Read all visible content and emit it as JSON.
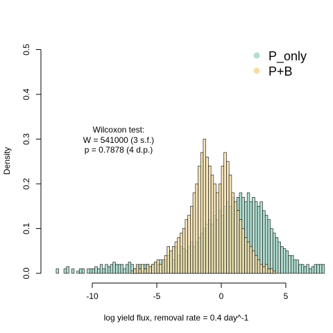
{
  "chart_data": {
    "type": "bar",
    "xlabel": "log yield flux, removal rate = 0.4 day^-1",
    "ylabel": "Density",
    "xlim": [
      -13,
      5.5
    ],
    "ylim": [
      0,
      0.5
    ],
    "x_ticks": [
      "-10",
      "-5",
      "0",
      "5"
    ],
    "y_ticks": [
      "0.0",
      "0.1",
      "0.2",
      "0.3",
      "0.4",
      "0.5"
    ],
    "grid": false,
    "legend_position": "top-right",
    "annotation": [
      "Wilcoxon test:",
      "W = 541000 (3 s.f.)",
      "p = 0.7878 (4 d.p.)"
    ],
    "bin_width": 0.2,
    "series": [
      {
        "name": "P_only",
        "color": "#b3ded2",
        "bin_start": -12.8,
        "values": [
          0.01,
          0,
          0,
          0.01,
          0.015,
          0,
          0.01,
          0,
          0.005,
          0.01,
          0.01,
          0,
          0.01,
          0.01,
          0.01,
          0.015,
          0.01,
          0.02,
          0.01,
          0.02,
          0.015,
          0.02,
          0.025,
          0.02,
          0.02,
          0.02,
          0.01,
          0.02,
          0.025,
          0.02,
          0.01,
          0.015,
          0.02,
          0.005,
          0.02,
          0.02,
          0.01,
          0.02,
          0.025,
          0.02,
          0.03,
          0.025,
          0.03,
          0.04,
          0.05,
          0.03,
          0.06,
          0.04,
          0.06,
          0.055,
          0.05,
          0.06,
          0.07,
          0.06,
          0.07,
          0.08,
          0.09,
          0.1,
          0.11,
          0.12,
          0.11,
          0.13,
          0.12,
          0.14,
          0.13,
          0.15,
          0.16,
          0.15,
          0.17,
          0.16,
          0.17,
          0.18,
          0.17,
          0.16,
          0.18,
          0.16,
          0.17,
          0.16,
          0.15,
          0.16,
          0.14,
          0.13,
          0.12,
          0.1,
          0.09,
          0.08,
          0.07,
          0.06,
          0.055,
          0.05,
          0.04,
          0.04,
          0.03,
          0.03,
          0.02,
          0.02,
          0.015,
          0.02,
          0.01,
          0.015,
          0.02,
          0.02,
          0.02,
          0.02
        ]
      },
      {
        "name": "P+B",
        "color": "#f5dea6",
        "bin_start": -7,
        "values": [
          0.005,
          0.01,
          0.02,
          0.01,
          0.02,
          0.01,
          0.02,
          0.015,
          0.02,
          0.025,
          0.03,
          0.02,
          0.03,
          0.04,
          0.06,
          0.05,
          0.06,
          0.07,
          0.08,
          0.09,
          0.1,
          0.12,
          0.13,
          0.15,
          0.18,
          0.2,
          0.24,
          0.27,
          0.3,
          0.26,
          0.24,
          0.22,
          0.2,
          0.18,
          0.2,
          0.24,
          0.27,
          0.25,
          0.22,
          0.18,
          0.16,
          0.14,
          0.12,
          0.1,
          0.08,
          0.07,
          0.06,
          0.05,
          0.04,
          0.03,
          0.02,
          0.015,
          0.02,
          0.01,
          0.01,
          0.005
        ]
      }
    ]
  }
}
